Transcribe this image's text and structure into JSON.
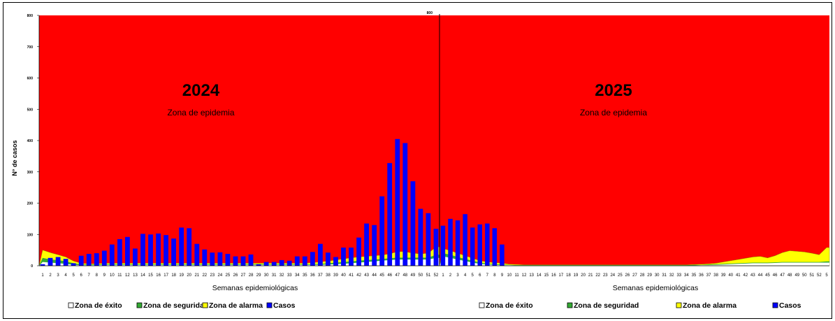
{
  "y_axis_label": "N° de casos",
  "chart_data": [
    {
      "type": "bar",
      "title": "2024",
      "annotation": "Zona de epidemia",
      "xlabel": "Semanas epidemiológicas",
      "ylabel": "N° de casos",
      "ylim": [
        0,
        800
      ],
      "yticks": [
        "0",
        "100",
        "200",
        "300",
        "400",
        "500",
        "600",
        "700",
        "800"
      ],
      "categories": [
        "1",
        "2",
        "3",
        "4",
        "5",
        "6",
        "7",
        "8",
        "9",
        "10",
        "11",
        "12",
        "13",
        "14",
        "15",
        "16",
        "17",
        "18",
        "19",
        "20",
        "21",
        "22",
        "23",
        "24",
        "25",
        "26",
        "27",
        "28",
        "29",
        "30",
        "31",
        "32",
        "33",
        "34",
        "35",
        "36",
        "37",
        "38",
        "39",
        "40",
        "41",
        "42",
        "43",
        "44",
        "45",
        "46",
        "47",
        "48",
        "49",
        "50",
        "51",
        "52"
      ],
      "series": [
        {
          "name": "Zona de éxito",
          "type": "area",
          "color": "#ffffff",
          "values": [
            12,
            10,
            8,
            6,
            3,
            2,
            2,
            2,
            3,
            3,
            3,
            3,
            3,
            3,
            3,
            3,
            3,
            3,
            3,
            3,
            3,
            3,
            3,
            3,
            3,
            3,
            3,
            3,
            3,
            3,
            3,
            3,
            3,
            3,
            3,
            3,
            3,
            4,
            5,
            6,
            8,
            10,
            12,
            14,
            16,
            18,
            20,
            20,
            20,
            20,
            20,
            25
          ]
        },
        {
          "name": "Zona de seguridad",
          "type": "area",
          "color": "#33aa33",
          "values": [
            25,
            20,
            18,
            14,
            8,
            4,
            4,
            4,
            5,
            5,
            5,
            5,
            5,
            5,
            5,
            5,
            5,
            5,
            5,
            5,
            5,
            5,
            5,
            5,
            5,
            5,
            5,
            5,
            5,
            5,
            5,
            5,
            5,
            5,
            5,
            5,
            6,
            8,
            10,
            12,
            14,
            16,
            18,
            20,
            22,
            24,
            26,
            26,
            26,
            26,
            26,
            35
          ]
        },
        {
          "name": "Zona de alarma",
          "type": "area",
          "color": "#ffff00",
          "values": [
            50,
            42,
            35,
            28,
            15,
            8,
            6,
            6,
            8,
            8,
            8,
            8,
            8,
            8,
            8,
            8,
            8,
            8,
            8,
            8,
            8,
            8,
            8,
            8,
            8,
            8,
            8,
            8,
            8,
            8,
            8,
            8,
            8,
            8,
            8,
            10,
            12,
            15,
            18,
            22,
            25,
            28,
            30,
            32,
            34,
            38,
            45,
            45,
            40,
            38,
            40,
            60
          ]
        },
        {
          "name": "Casos",
          "type": "bar",
          "color": "#0000ff",
          "values": [
            5,
            25,
            28,
            22,
            8,
            32,
            38,
            40,
            48,
            68,
            85,
            92,
            55,
            102,
            100,
            103,
            98,
            87,
            122,
            120,
            70,
            52,
            42,
            43,
            38,
            30,
            30,
            36,
            5,
            12,
            12,
            18,
            16,
            30,
            30,
            44,
            70,
            42,
            28,
            58,
            58,
            90,
            135,
            130,
            222,
            328,
            405,
            392,
            270,
            182,
            168,
            118
          ]
        }
      ]
    },
    {
      "type": "bar",
      "title": "2025",
      "annotation": "Zona de epidemia",
      "xlabel": "Semanas epidemiológicas",
      "ylabel": "",
      "ylim": [
        0,
        800
      ],
      "yticks": [
        "800"
      ],
      "categories": [
        "1",
        "2",
        "3",
        "4",
        "5",
        "6",
        "7",
        "8",
        "9",
        "10",
        "11",
        "12",
        "13",
        "14",
        "15",
        "16",
        "17",
        "18",
        "19",
        "20",
        "21",
        "22",
        "23",
        "24",
        "25",
        "26",
        "27",
        "28",
        "29",
        "30",
        "31",
        "32",
        "33",
        "34",
        "35",
        "36",
        "37",
        "38",
        "39",
        "40",
        "41",
        "42",
        "43",
        "44",
        "45",
        "46",
        "47",
        "48",
        "49",
        "50",
        "51",
        "52",
        "5"
      ],
      "series": [
        {
          "name": "Zona de éxito",
          "type": "area",
          "color": "#ffffff",
          "values": [
            30,
            25,
            20,
            15,
            10,
            6,
            4,
            3,
            2,
            2,
            1,
            1,
            1,
            1,
            1,
            1,
            1,
            1,
            1,
            1,
            1,
            1,
            1,
            1,
            1,
            1,
            1,
            1,
            1,
            1,
            1,
            1,
            1,
            1,
            1,
            2,
            2,
            3,
            4,
            5,
            6,
            7,
            8,
            8,
            8,
            9,
            10,
            10,
            10,
            10,
            10,
            10,
            10
          ]
        },
        {
          "name": "Zona de seguridad",
          "type": "area",
          "color": "#33aa33",
          "values": [
            40,
            35,
            28,
            22,
            16,
            10,
            7,
            5,
            4,
            3,
            2,
            2,
            2,
            2,
            2,
            2,
            2,
            2,
            2,
            2,
            2,
            2,
            2,
            2,
            2,
            2,
            2,
            2,
            2,
            2,
            2,
            2,
            2,
            2,
            3,
            3,
            4,
            5,
            6,
            7,
            8,
            9,
            10,
            10,
            10,
            11,
            12,
            12,
            12,
            12,
            12,
            12,
            14
          ]
        },
        {
          "name": "Zona de alarma",
          "type": "area",
          "color": "#ffff00",
          "values": [
            55,
            48,
            40,
            32,
            24,
            16,
            12,
            10,
            8,
            5,
            4,
            3,
            3,
            3,
            3,
            3,
            3,
            3,
            3,
            3,
            3,
            3,
            3,
            3,
            3,
            3,
            3,
            3,
            3,
            3,
            3,
            3,
            3,
            3,
            4,
            5,
            6,
            8,
            12,
            16,
            20,
            24,
            28,
            30,
            25,
            32,
            42,
            48,
            46,
            44,
            40,
            35,
            58
          ]
        },
        {
          "name": "Casos",
          "type": "bar",
          "color": "#0000ff",
          "values": [
            128,
            150,
            145,
            165,
            122,
            132,
            135,
            120,
            68,
            0,
            0,
            0,
            0,
            0,
            0,
            0,
            0,
            0,
            0,
            0,
            0,
            0,
            0,
            0,
            0,
            0,
            0,
            0,
            0,
            0,
            0,
            0,
            0,
            0,
            0,
            0,
            0,
            0,
            0,
            0,
            0,
            0,
            0,
            0,
            0,
            0,
            0,
            0,
            0,
            0,
            0,
            0,
            0
          ]
        }
      ]
    }
  ],
  "legend": [
    {
      "label": "Zona de éxito",
      "color": "#ffffff"
    },
    {
      "label": "Zona de seguridad",
      "color": "#33aa33"
    },
    {
      "label": "Zona de alarma",
      "color": "#ffff00"
    },
    {
      "label": "Casos",
      "color": "#0000ff"
    }
  ],
  "epidemic_zone_color": "#ff0000"
}
